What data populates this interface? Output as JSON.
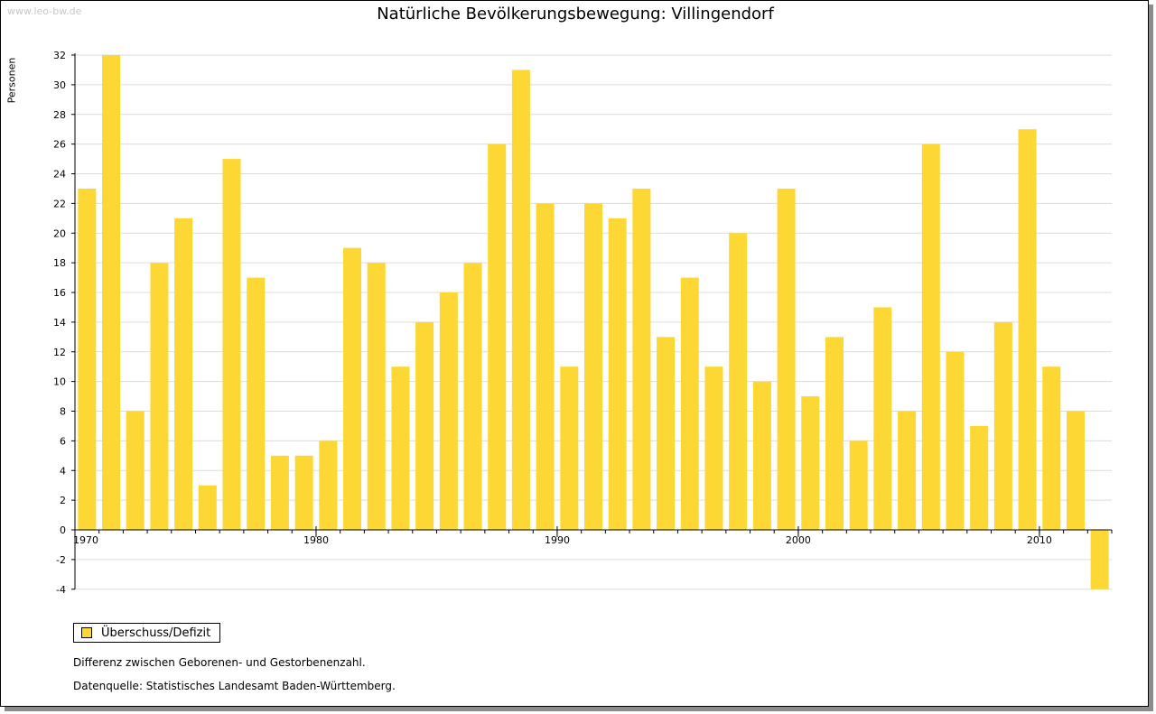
{
  "watermark": "www.leo-bw.de",
  "colors": {
    "bar": "#fdd835",
    "grid": "#dcdcdc",
    "axis": "#000000"
  },
  "legend": {
    "label": "Überschuss/Defizit",
    "icon": "square-swatch-icon"
  },
  "notes": {
    "description": "Differenz zwischen Geborenen- und Gestorbenenzahl.",
    "source": "Datenquelle: Statistisches Landesamt Baden-Württemberg."
  },
  "chart_data": {
    "type": "bar",
    "title": "Natürliche Bevölkerungsbewegung: Villingendorf",
    "ylabel": "Personen",
    "xlabel": "",
    "ylim": [
      -4,
      32
    ],
    "yticks": [
      32,
      30,
      28,
      26,
      24,
      22,
      20,
      18,
      16,
      14,
      12,
      10,
      8,
      6,
      4,
      2,
      0,
      -2,
      -4
    ],
    "xtick_labels": [
      "1970",
      "1980",
      "1990",
      "2000",
      "2010"
    ],
    "grid": true,
    "legend_position": "bottom-left",
    "categories": [
      1970,
      1971,
      1972,
      1973,
      1974,
      1975,
      1976,
      1977,
      1978,
      1979,
      1980,
      1981,
      1982,
      1983,
      1984,
      1985,
      1986,
      1987,
      1988,
      1989,
      1990,
      1991,
      1992,
      1993,
      1994,
      1995,
      1996,
      1997,
      1998,
      1999,
      2000,
      2001,
      2002,
      2003,
      2004,
      2005,
      2006,
      2007,
      2008,
      2009,
      2010,
      2011,
      2012
    ],
    "series": [
      {
        "name": "Überschuss/Defizit",
        "values": [
          23,
          32,
          8,
          18,
          21,
          3,
          25,
          17,
          5,
          5,
          6,
          19,
          18,
          11,
          14,
          16,
          18,
          26,
          31,
          22,
          11,
          22,
          21,
          23,
          13,
          17,
          11,
          20,
          10,
          23,
          9,
          13,
          6,
          15,
          8,
          26,
          12,
          7,
          14,
          27,
          11,
          8,
          -4
        ]
      }
    ]
  }
}
